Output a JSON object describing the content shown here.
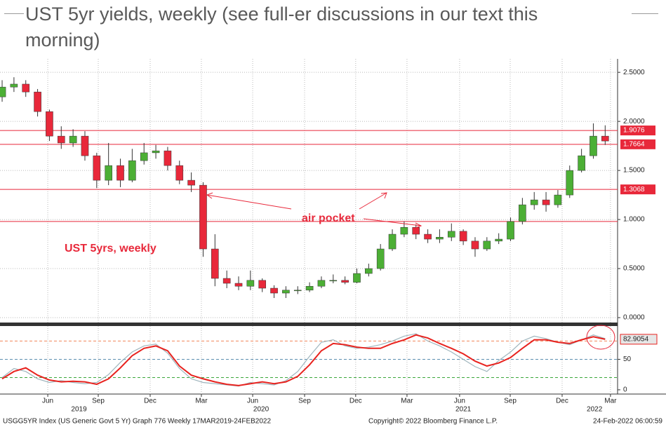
{
  "title": "UST 5yr yields, weekly (see full-er discussions in our text this morning)",
  "footer": {
    "left": "USGG5YR Index (US Generic Govt 5 Yr) Graph 776  Weekly 17MAR2019-24FEB2022",
    "center": "Copyright© 2022 Bloomberg Finance L.P.",
    "right": "24-Feb-2022 06:00:59"
  },
  "chart_data": [
    {
      "type": "candlestick",
      "annotations": [
        "UST 5yrs, weekly",
        "air pocket"
      ],
      "up_color": "#4caf35",
      "down_color": "#e8283a",
      "level_color": "#e8283a",
      "open": [
        2.25,
        2.35,
        2.38,
        2.3,
        2.1,
        1.85,
        1.78,
        1.85,
        1.65,
        1.4,
        1.55,
        1.4,
        1.6,
        1.68,
        1.7,
        1.55,
        1.4,
        1.35,
        0.7,
        0.4,
        0.35,
        0.32,
        0.38,
        0.3,
        0.25,
        0.28,
        0.28,
        0.32,
        0.38,
        0.38,
        0.36,
        0.45,
        0.5,
        0.7,
        0.85,
        0.92,
        0.85,
        0.8,
        0.82,
        0.88,
        0.78,
        0.7,
        0.78,
        0.8,
        0.98,
        1.15,
        1.2,
        1.15,
        1.25,
        1.5,
        1.65,
        1.85
      ],
      "high": [
        2.42,
        2.45,
        2.42,
        2.33,
        2.12,
        1.95,
        1.92,
        1.9,
        1.68,
        1.78,
        1.62,
        1.72,
        1.78,
        1.76,
        1.74,
        1.6,
        1.48,
        1.38,
        0.85,
        0.48,
        0.42,
        0.48,
        0.4,
        0.33,
        0.32,
        0.32,
        0.36,
        0.42,
        0.44,
        0.42,
        0.5,
        0.55,
        0.75,
        0.9,
        0.98,
        0.95,
        0.9,
        0.9,
        0.96,
        0.9,
        0.82,
        0.82,
        0.86,
        1.02,
        1.22,
        1.28,
        1.28,
        1.3,
        1.55,
        1.72,
        1.98,
        1.96
      ],
      "low": [
        2.2,
        2.3,
        2.25,
        2.05,
        1.8,
        1.72,
        1.74,
        1.6,
        1.32,
        1.35,
        1.33,
        1.38,
        1.56,
        1.62,
        1.5,
        1.36,
        1.28,
        0.62,
        0.32,
        0.3,
        0.28,
        0.28,
        0.26,
        0.2,
        0.2,
        0.24,
        0.26,
        0.3,
        0.35,
        0.34,
        0.35,
        0.42,
        0.48,
        0.68,
        0.82,
        0.8,
        0.76,
        0.76,
        0.78,
        0.74,
        0.62,
        0.68,
        0.75,
        0.78,
        0.95,
        1.1,
        1.08,
        1.12,
        1.22,
        1.48,
        1.62,
        1.76
      ],
      "close": [
        2.35,
        2.38,
        2.3,
        2.1,
        1.85,
        1.78,
        1.85,
        1.65,
        1.4,
        1.55,
        1.4,
        1.6,
        1.68,
        1.7,
        1.55,
        1.4,
        1.35,
        0.7,
        0.4,
        0.35,
        0.32,
        0.38,
        0.3,
        0.25,
        0.28,
        0.28,
        0.32,
        0.38,
        0.38,
        0.36,
        0.45,
        0.5,
        0.7,
        0.85,
        0.92,
        0.85,
        0.8,
        0.82,
        0.88,
        0.78,
        0.7,
        0.78,
        0.8,
        0.98,
        1.15,
        1.2,
        1.15,
        1.25,
        1.5,
        1.65,
        1.85,
        1.8
      ],
      "ylim": [
        -0.05,
        2.637
      ],
      "yticks": [
        {
          "value": 2.5,
          "label": "2.5000"
        },
        {
          "value": 2,
          "label": "2.0000"
        },
        {
          "value": 1.5,
          "label": "1.5000"
        },
        {
          "value": 1,
          "label": "1.0000"
        },
        {
          "value": 0.5,
          "label": "0.5000"
        },
        {
          "value": 0,
          "label": "0.0000"
        }
      ],
      "levels": [
        1.9076,
        1.7664,
        1.3068
      ],
      "unlabeled_levels": [
        0.98
      ],
      "xlim": [
        -0.18,
        52.05
      ],
      "grid": true
    },
    {
      "type": "line",
      "series": [
        {
          "color": "#9fb5bd",
          "values": [
            20,
            35,
            30,
            18,
            12,
            15,
            12,
            10,
            12,
            25,
            45,
            62,
            72,
            75,
            60,
            35,
            18,
            12,
            10,
            8,
            6,
            12,
            10,
            8,
            15,
            30,
            55,
            78,
            82,
            72,
            68,
            70,
            74,
            80,
            88,
            92,
            80,
            72,
            62,
            50,
            38,
            30,
            48,
            62,
            80,
            88,
            84,
            78,
            74,
            82,
            90,
            84
          ]
        },
        {
          "color": "#e8231f",
          "values": [
            18,
            30,
            36,
            24,
            16,
            13,
            14,
            13,
            9,
            18,
            36,
            56,
            68,
            72,
            64,
            39,
            24,
            18,
            13,
            9,
            7,
            10,
            13,
            10,
            13,
            22,
            41,
            64,
            76,
            74,
            70,
            68,
            68,
            76,
            82,
            90,
            85,
            76,
            68,
            59,
            47,
            39,
            44,
            53,
            68,
            82,
            82,
            78,
            76,
            82,
            87,
            82.9054
          ]
        }
      ],
      "reference_lines": [
        {
          "value": 80,
          "color": "#f0845a"
        },
        {
          "value": 50,
          "color": "#5b8fb0"
        },
        {
          "value": 20,
          "color": "#3aa63a"
        }
      ],
      "ylim": [
        -7,
        104.6
      ],
      "yticks": [
        50,
        0
      ],
      "xlim": [
        -0.18,
        52.05
      ],
      "xticks": [
        {
          "value": 3.86,
          "label": "Jun"
        },
        {
          "value": 8.13,
          "label": "Sep"
        },
        {
          "value": 12.52,
          "label": "Dec"
        },
        {
          "value": 16.85,
          "label": "Mar"
        },
        {
          "value": 21.19,
          "label": "Jun"
        },
        {
          "value": 25.58,
          "label": "Sep"
        },
        {
          "value": 29.9,
          "label": "Dec"
        },
        {
          "value": 34.24,
          "label": "Mar"
        },
        {
          "value": 38.69,
          "label": "Jun"
        },
        {
          "value": 42.97,
          "label": "Sep"
        },
        {
          "value": 47.36,
          "label": "Dec"
        },
        {
          "value": 51.45,
          "label": "Mar"
        }
      ],
      "xyears": [
        {
          "value": 6.5,
          "label": "2019"
        },
        {
          "value": 21.9,
          "label": "2020"
        },
        {
          "value": 39,
          "label": "2021"
        },
        {
          "value": 50.1,
          "label": "2022"
        }
      ],
      "grid": true
    }
  ]
}
